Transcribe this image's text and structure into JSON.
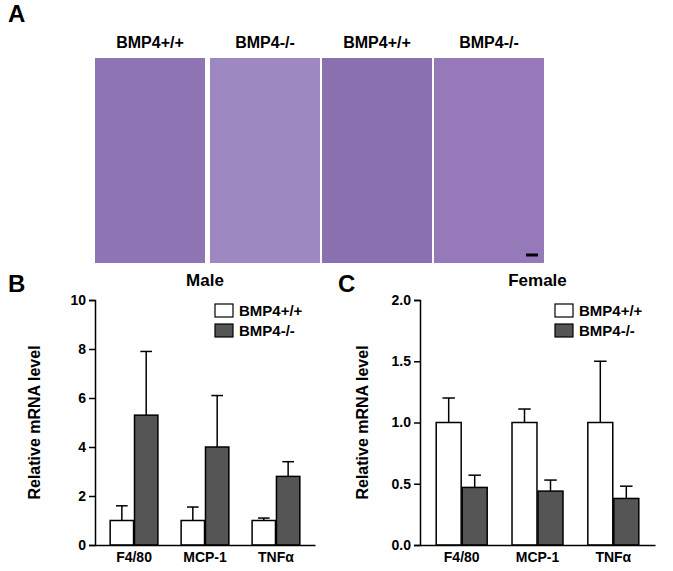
{
  "figure": {
    "panel_labels": [
      "A",
      "B",
      "C"
    ],
    "images": [
      {
        "label": "BMP4+/+"
      },
      {
        "label": "BMP4-/-"
      },
      {
        "label": "BMP4+/+"
      },
      {
        "label": "BMP4-/-"
      }
    ]
  },
  "chart_data": [
    {
      "type": "bar",
      "title": "Male",
      "y_label": "Relative mRNA level",
      "categories": [
        "F4/80",
        "MCP-1",
        "TNFα"
      ],
      "series": [
        {
          "name": "BMP4+/+",
          "color": "#ffffff",
          "values": [
            1.0,
            1.0,
            1.0
          ],
          "errors": [
            0.6,
            0.55,
            0.1
          ]
        },
        {
          "name": "BMP4-/-",
          "color": "#555555",
          "values": [
            5.3,
            4.0,
            2.8
          ],
          "errors": [
            2.6,
            2.1,
            0.6
          ]
        }
      ],
      "ylim": [
        0,
        10
      ],
      "yticks": [
        0,
        2,
        4,
        6,
        8,
        10
      ],
      "legend": "upper right"
    },
    {
      "type": "bar",
      "title": "Female",
      "y_label": "Relative mRNA level",
      "categories": [
        "F4/80",
        "MCP-1",
        "TNFα"
      ],
      "series": [
        {
          "name": "BMP4+/+",
          "color": "#ffffff",
          "values": [
            1.0,
            1.0,
            1.0
          ],
          "errors": [
            0.2,
            0.11,
            0.5
          ]
        },
        {
          "name": "BMP4-/-",
          "color": "#555555",
          "values": [
            0.47,
            0.44,
            0.38
          ],
          "errors": [
            0.1,
            0.09,
            0.1
          ]
        }
      ],
      "ylim": [
        0,
        2.0
      ],
      "yticks": [
        {
          "value": 0,
          "label": "0.0"
        },
        {
          "value": 0.5,
          "label": "0.5"
        },
        {
          "value": 1.0,
          "label": "1.0"
        },
        {
          "value": 1.5,
          "label": "1.5"
        },
        {
          "value": 2.0,
          "label": "2.0"
        }
      ],
      "legend": "upper right"
    }
  ]
}
